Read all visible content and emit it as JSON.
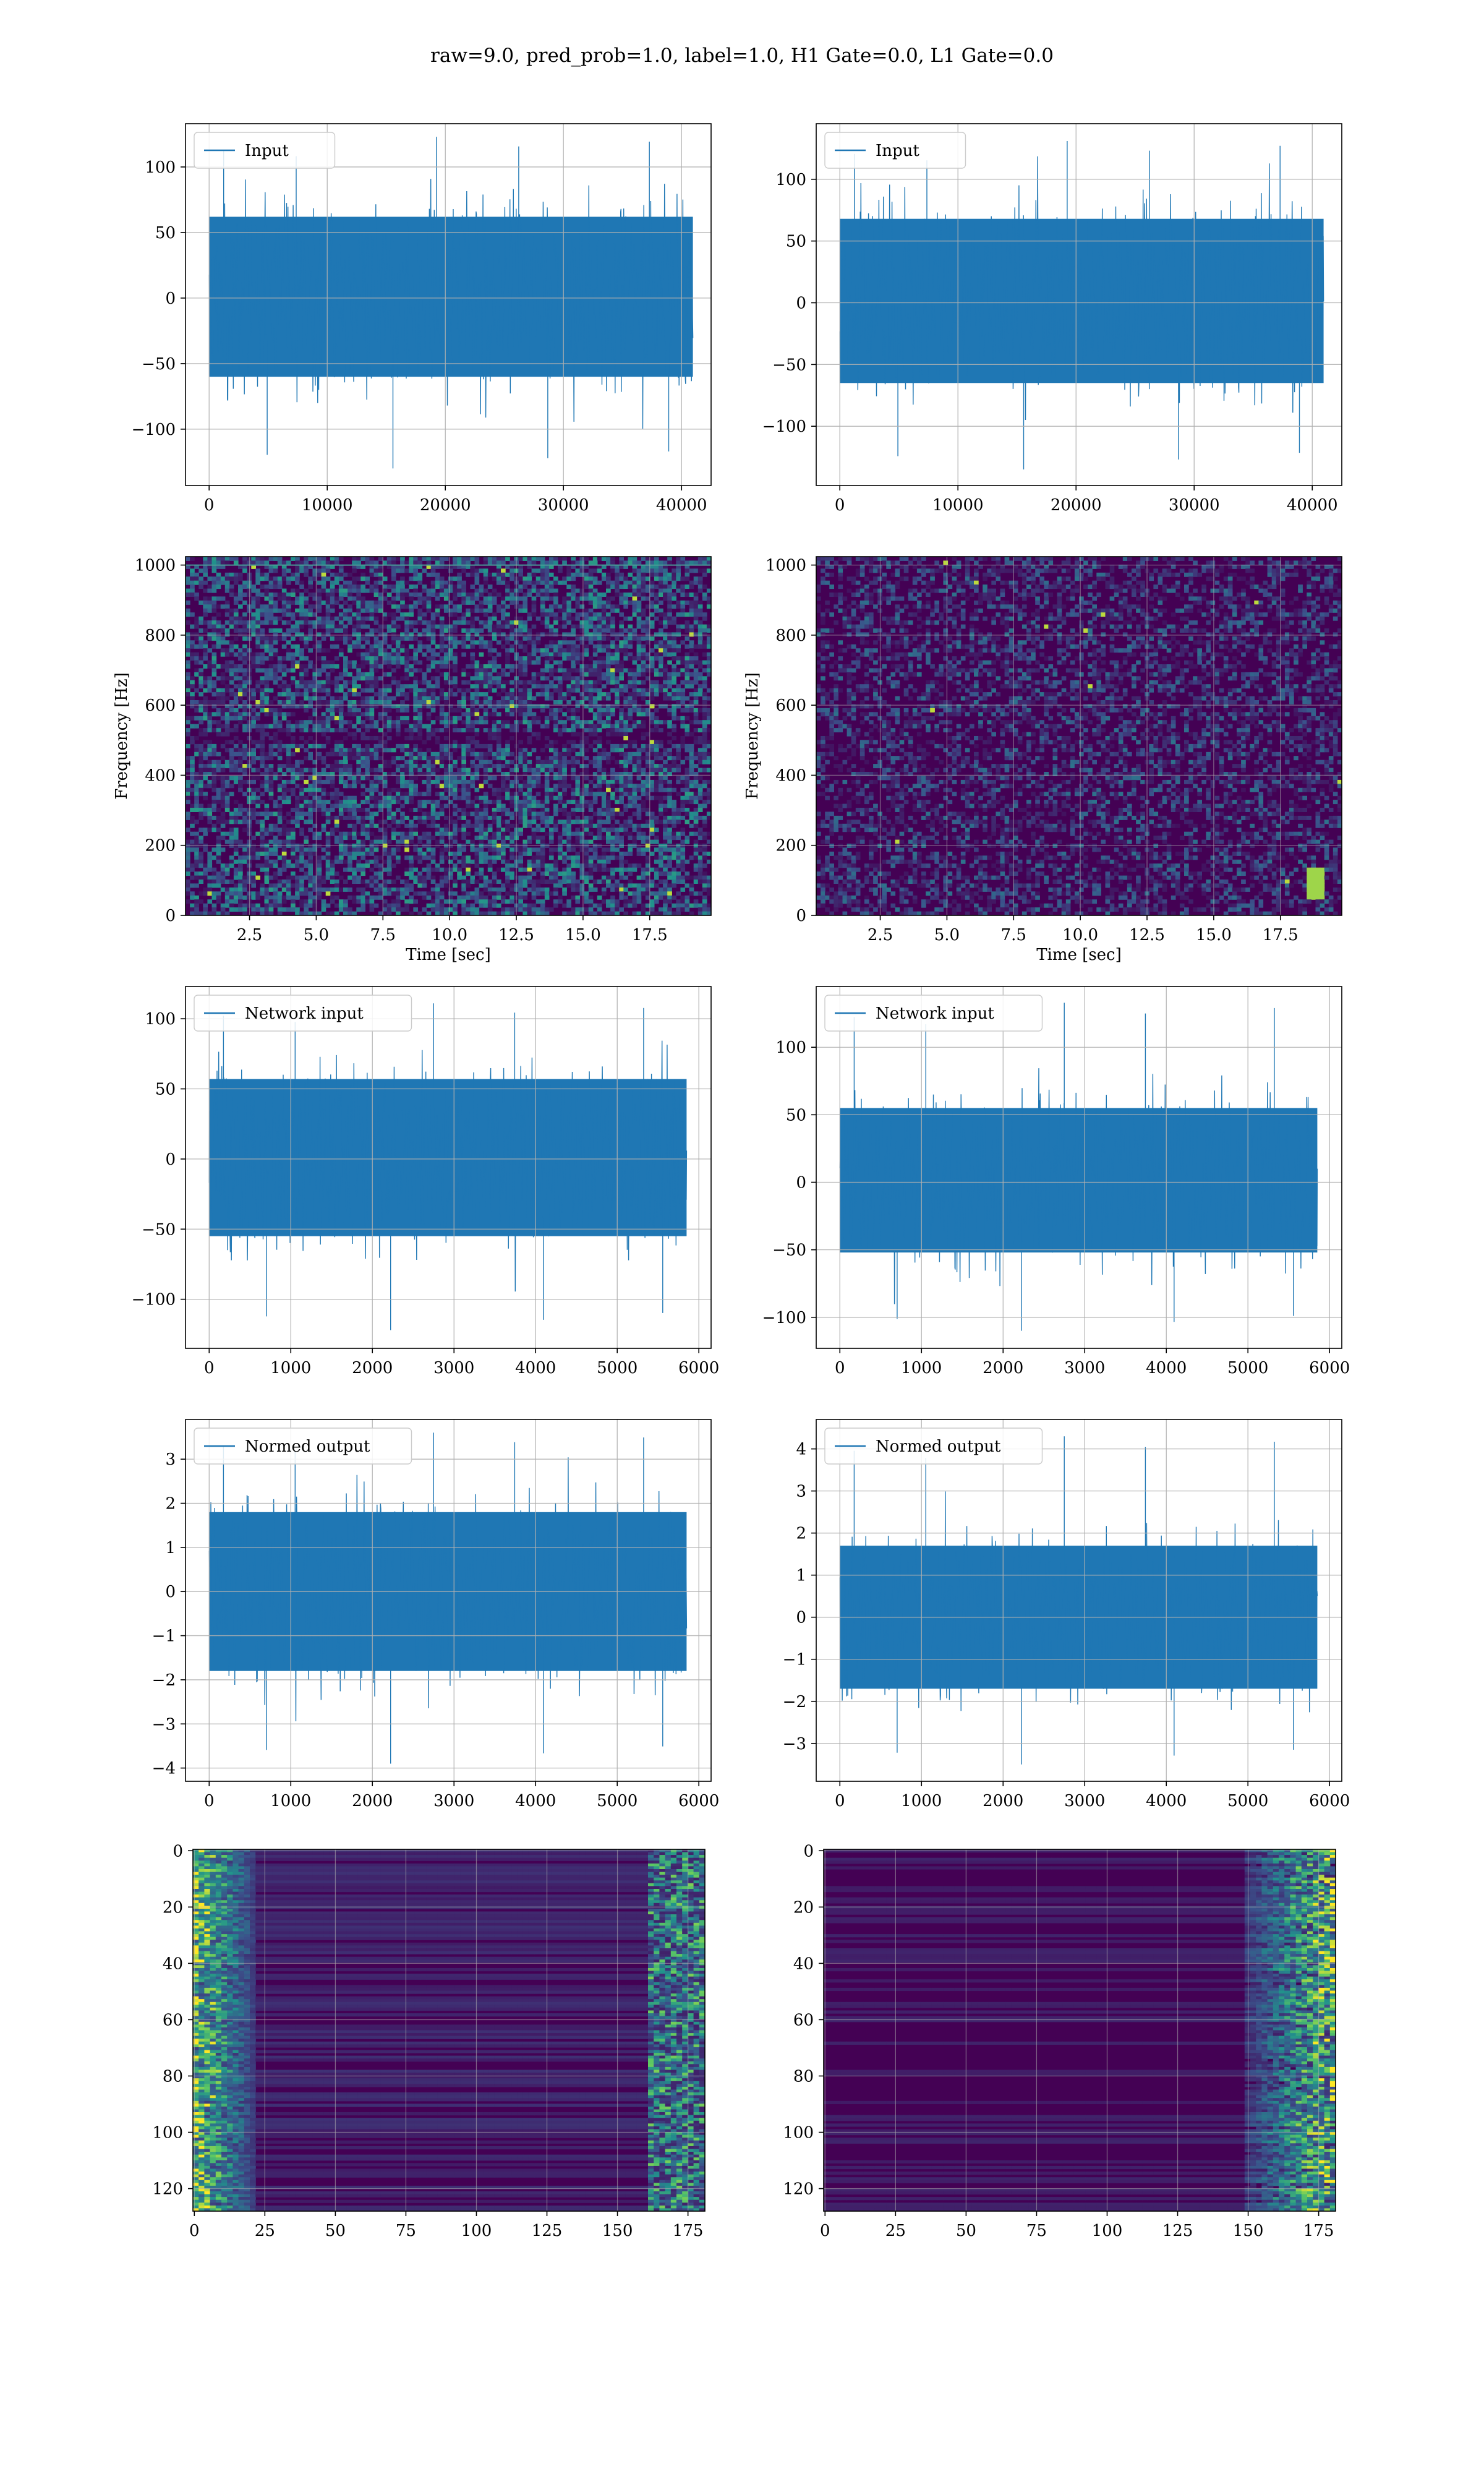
{
  "figure": {
    "title": "raw=9.0, pred_prob=1.0, label=1.0, H1 Gate=0.0, L1 Gate=0.0",
    "colors": {
      "line": "#1f77b4",
      "grid": "#b0b0b0",
      "viridis_low": "#440154",
      "viridis_mid": "#21918c",
      "viridis_high": "#fde725"
    }
  },
  "chart_data": [
    {
      "id": "input-h1",
      "type": "line",
      "legend": "Input",
      "legend_position": "upper-left",
      "xlim": [
        -2000,
        42500
      ],
      "ylim": [
        -143,
        133
      ],
      "xticks": [
        0,
        10000,
        20000,
        30000,
        40000
      ],
      "yticks": [
        -100,
        -50,
        0,
        50,
        100
      ],
      "xtick_labels": [
        "0",
        "10000",
        "20000",
        "30000",
        "40000"
      ],
      "ytick_labels": [
        "−100",
        "−50",
        "0",
        "50",
        "100"
      ],
      "series": [
        {
          "x_range": [
            0,
            40960
          ],
          "core": [
            -60,
            62
          ],
          "min": -130,
          "max": 123
        }
      ],
      "grid": true
    },
    {
      "id": "input-l1",
      "type": "line",
      "legend": "Input",
      "legend_position": "upper-left",
      "xlim": [
        -2000,
        42500
      ],
      "ylim": [
        -148,
        145
      ],
      "xticks": [
        0,
        10000,
        20000,
        30000,
        40000
      ],
      "yticks": [
        -100,
        -50,
        0,
        50,
        100
      ],
      "xtick_labels": [
        "0",
        "10000",
        "20000",
        "30000",
        "40000"
      ],
      "ytick_labels": [
        "−100",
        "−50",
        "0",
        "50",
        "100"
      ],
      "series": [
        {
          "x_range": [
            0,
            40960
          ],
          "core": [
            -65,
            68
          ],
          "min": -135,
          "max": 131
        }
      ],
      "grid": true
    },
    {
      "id": "spec-h1",
      "type": "heatmap",
      "colormap": "viridis",
      "xlabel": "Time [sec]",
      "ylabel": "Frequency [Hz]",
      "xlim": [
        0.1,
        19.8
      ],
      "ylim": [
        0,
        1024
      ],
      "xticks": [
        2.5,
        5.0,
        7.5,
        10.0,
        12.5,
        15.0,
        17.5
      ],
      "yticks": [
        0,
        200,
        400,
        600,
        800,
        1000
      ],
      "xtick_labels": [
        "2.5",
        "5.0",
        "7.5",
        "10.0",
        "12.5",
        "15.0",
        "17.5"
      ],
      "ytick_labels": [
        "0",
        "200",
        "400",
        "600",
        "800",
        "1000"
      ],
      "grid": true
    },
    {
      "id": "spec-l1",
      "type": "heatmap",
      "colormap": "viridis",
      "xlabel": "Time [sec]",
      "ylabel": "Frequency [Hz]",
      "xlim": [
        0.1,
        19.8
      ],
      "ylim": [
        0,
        1024
      ],
      "xticks": [
        2.5,
        5.0,
        7.5,
        10.0,
        12.5,
        15.0,
        17.5
      ],
      "yticks": [
        0,
        200,
        400,
        600,
        800,
        1000
      ],
      "xtick_labels": [
        "2.5",
        "5.0",
        "7.5",
        "10.0",
        "12.5",
        "15.0",
        "17.5"
      ],
      "ytick_labels": [
        "0",
        "200",
        "400",
        "600",
        "800",
        "1000"
      ],
      "grid": true
    },
    {
      "id": "netin-h1",
      "type": "line",
      "legend": "Network input",
      "legend_position": "upper-left",
      "xlim": [
        -290,
        6150
      ],
      "ylim": [
        -135,
        123
      ],
      "xticks": [
        0,
        1000,
        2000,
        3000,
        4000,
        5000,
        6000
      ],
      "yticks": [
        -100,
        -50,
        0,
        50,
        100
      ],
      "xtick_labels": [
        "0",
        "1000",
        "2000",
        "3000",
        "4000",
        "5000",
        "6000"
      ],
      "ytick_labels": [
        "−100",
        "−50",
        "0",
        "50",
        "100"
      ],
      "series": [
        {
          "x_range": [
            0,
            5850
          ],
          "core": [
            -55,
            57
          ],
          "min": -122,
          "max": 111
        }
      ],
      "grid": true
    },
    {
      "id": "netin-l1",
      "type": "line",
      "legend": "Network input",
      "legend_position": "upper-left",
      "xlim": [
        -290,
        6150
      ],
      "ylim": [
        -123,
        145
      ],
      "xticks": [
        0,
        1000,
        2000,
        3000,
        4000,
        5000,
        6000
      ],
      "yticks": [
        -100,
        -50,
        0,
        50,
        100
      ],
      "xtick_labels": [
        "0",
        "1000",
        "2000",
        "3000",
        "4000",
        "5000",
        "6000"
      ],
      "ytick_labels": [
        "−100",
        "−50",
        "0",
        "50",
        "100"
      ],
      "series": [
        {
          "x_range": [
            0,
            5850
          ],
          "core": [
            -52,
            55
          ],
          "min": -110,
          "max": 133
        }
      ],
      "grid": true
    },
    {
      "id": "normed-h1",
      "type": "line",
      "legend": "Normed output",
      "legend_position": "upper-left",
      "xlim": [
        -290,
        6150
      ],
      "ylim": [
        -4.3,
        3.9
      ],
      "xticks": [
        0,
        1000,
        2000,
        3000,
        4000,
        5000,
        6000
      ],
      "yticks": [
        -4,
        -3,
        -2,
        -1,
        0,
        1,
        2,
        3
      ],
      "xtick_labels": [
        "0",
        "1000",
        "2000",
        "3000",
        "4000",
        "5000",
        "6000"
      ],
      "ytick_labels": [
        "−4",
        "−3",
        "−2",
        "−1",
        "0",
        "1",
        "2",
        "3"
      ],
      "series": [
        {
          "x_range": [
            0,
            5850
          ],
          "core": [
            -1.8,
            1.8
          ],
          "min": -3.9,
          "max": 3.6
        }
      ],
      "grid": true
    },
    {
      "id": "normed-l1",
      "type": "line",
      "legend": "Normed output",
      "legend_position": "upper-left",
      "xlim": [
        -290,
        6150
      ],
      "ylim": [
        -3.9,
        4.7
      ],
      "xticks": [
        0,
        1000,
        2000,
        3000,
        4000,
        5000,
        6000
      ],
      "yticks": [
        -3,
        -2,
        -1,
        0,
        1,
        2,
        3,
        4
      ],
      "xtick_labels": [
        "0",
        "1000",
        "2000",
        "3000",
        "4000",
        "5000",
        "6000"
      ],
      "ytick_labels": [
        "−3",
        "−2",
        "−1",
        "0",
        "1",
        "2",
        "3",
        "4"
      ],
      "series": [
        {
          "x_range": [
            0,
            5850
          ],
          "core": [
            -1.7,
            1.7
          ],
          "min": -3.5,
          "max": 4.3
        }
      ],
      "grid": true
    },
    {
      "id": "feat-h1",
      "type": "heatmap",
      "colormap": "viridis",
      "xlim": [
        -0.5,
        181
      ],
      "ylim": [
        128,
        -0.5
      ],
      "xticks": [
        0,
        25,
        50,
        75,
        100,
        125,
        150,
        175
      ],
      "yticks": [
        0,
        20,
        40,
        60,
        80,
        100,
        120
      ],
      "xtick_labels": [
        "0",
        "25",
        "50",
        "75",
        "100",
        "125",
        "150",
        "175"
      ],
      "ytick_labels": [
        "0",
        "20",
        "40",
        "60",
        "80",
        "100",
        "120"
      ],
      "grid": true
    },
    {
      "id": "feat-l1",
      "type": "heatmap",
      "colormap": "viridis",
      "xlim": [
        -0.5,
        181
      ],
      "ylim": [
        128,
        -0.5
      ],
      "xticks": [
        0,
        25,
        50,
        75,
        100,
        125,
        150,
        175
      ],
      "yticks": [
        0,
        20,
        40,
        60,
        80,
        100,
        120
      ],
      "xtick_labels": [
        "0",
        "25",
        "50",
        "75",
        "100",
        "125",
        "150",
        "175"
      ],
      "ytick_labels": [
        "0",
        "20",
        "40",
        "60",
        "80",
        "100",
        "120"
      ],
      "grid": true
    }
  ]
}
